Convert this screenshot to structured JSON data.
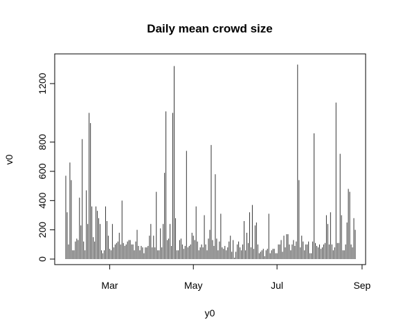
{
  "chart_data": {
    "type": "bar",
    "title": "Daily mean crowd size",
    "xlabel": "y0",
    "ylabel": "v0",
    "x_ticks": [
      {
        "label": "Mar",
        "day": 32
      },
      {
        "label": "May",
        "day": 93
      },
      {
        "label": "Jul",
        "day": 154
      },
      {
        "label": "Sep",
        "day": 216
      }
    ],
    "y_ticks": [
      0,
      200,
      400,
      600,
      800,
      1200
    ],
    "ylim": [
      0,
      1300
    ],
    "x_start_label": "Feb 1",
    "values": [
      570,
      320,
      100,
      660,
      540,
      60,
      60,
      120,
      140,
      130,
      420,
      230,
      820,
      120,
      60,
      470,
      240,
      1000,
      930,
      360,
      150,
      120,
      360,
      330,
      280,
      240,
      60,
      40,
      60,
      360,
      260,
      160,
      70,
      60,
      240,
      80,
      100,
      110,
      120,
      180,
      100,
      400,
      110,
      90,
      100,
      120,
      130,
      130,
      100,
      100,
      60,
      120,
      200,
      90,
      60,
      90,
      80,
      40,
      80,
      80,
      90,
      160,
      240,
      80,
      160,
      80,
      460,
      60,
      60,
      210,
      80,
      240,
      590,
      1010,
      130,
      140,
      240,
      90,
      1000,
      1320,
      280,
      60,
      60,
      130,
      140,
      100,
      70,
      90,
      740,
      80,
      90,
      100,
      180,
      160,
      130,
      360,
      120,
      60,
      80,
      100,
      80,
      300,
      100,
      60,
      140,
      200,
      780,
      130,
      90,
      580,
      140,
      60,
      120,
      310,
      80,
      70,
      90,
      60,
      80,
      120,
      160,
      50,
      130,
      10,
      50,
      100,
      120,
      80,
      60,
      100,
      260,
      60,
      180,
      110,
      320,
      80,
      370,
      70,
      230,
      250,
      100,
      40,
      50,
      60,
      70,
      20,
      60,
      70,
      310,
      40,
      60,
      70,
      70,
      40,
      40,
      100,
      100,
      130,
      50,
      160,
      80,
      170,
      170,
      100,
      60,
      100,
      130,
      90,
      120,
      1330,
      540,
      80,
      160,
      120,
      60,
      100,
      100,
      120,
      40,
      40,
      120,
      860,
      110,
      90,
      80,
      100,
      70,
      80,
      100,
      110,
      300,
      240,
      100,
      320,
      100,
      60,
      80,
      1070,
      110,
      110,
      720,
      300,
      60,
      60,
      100,
      250,
      480,
      460,
      100,
      80,
      280,
      200
    ],
    "bar_color": "#333333"
  }
}
